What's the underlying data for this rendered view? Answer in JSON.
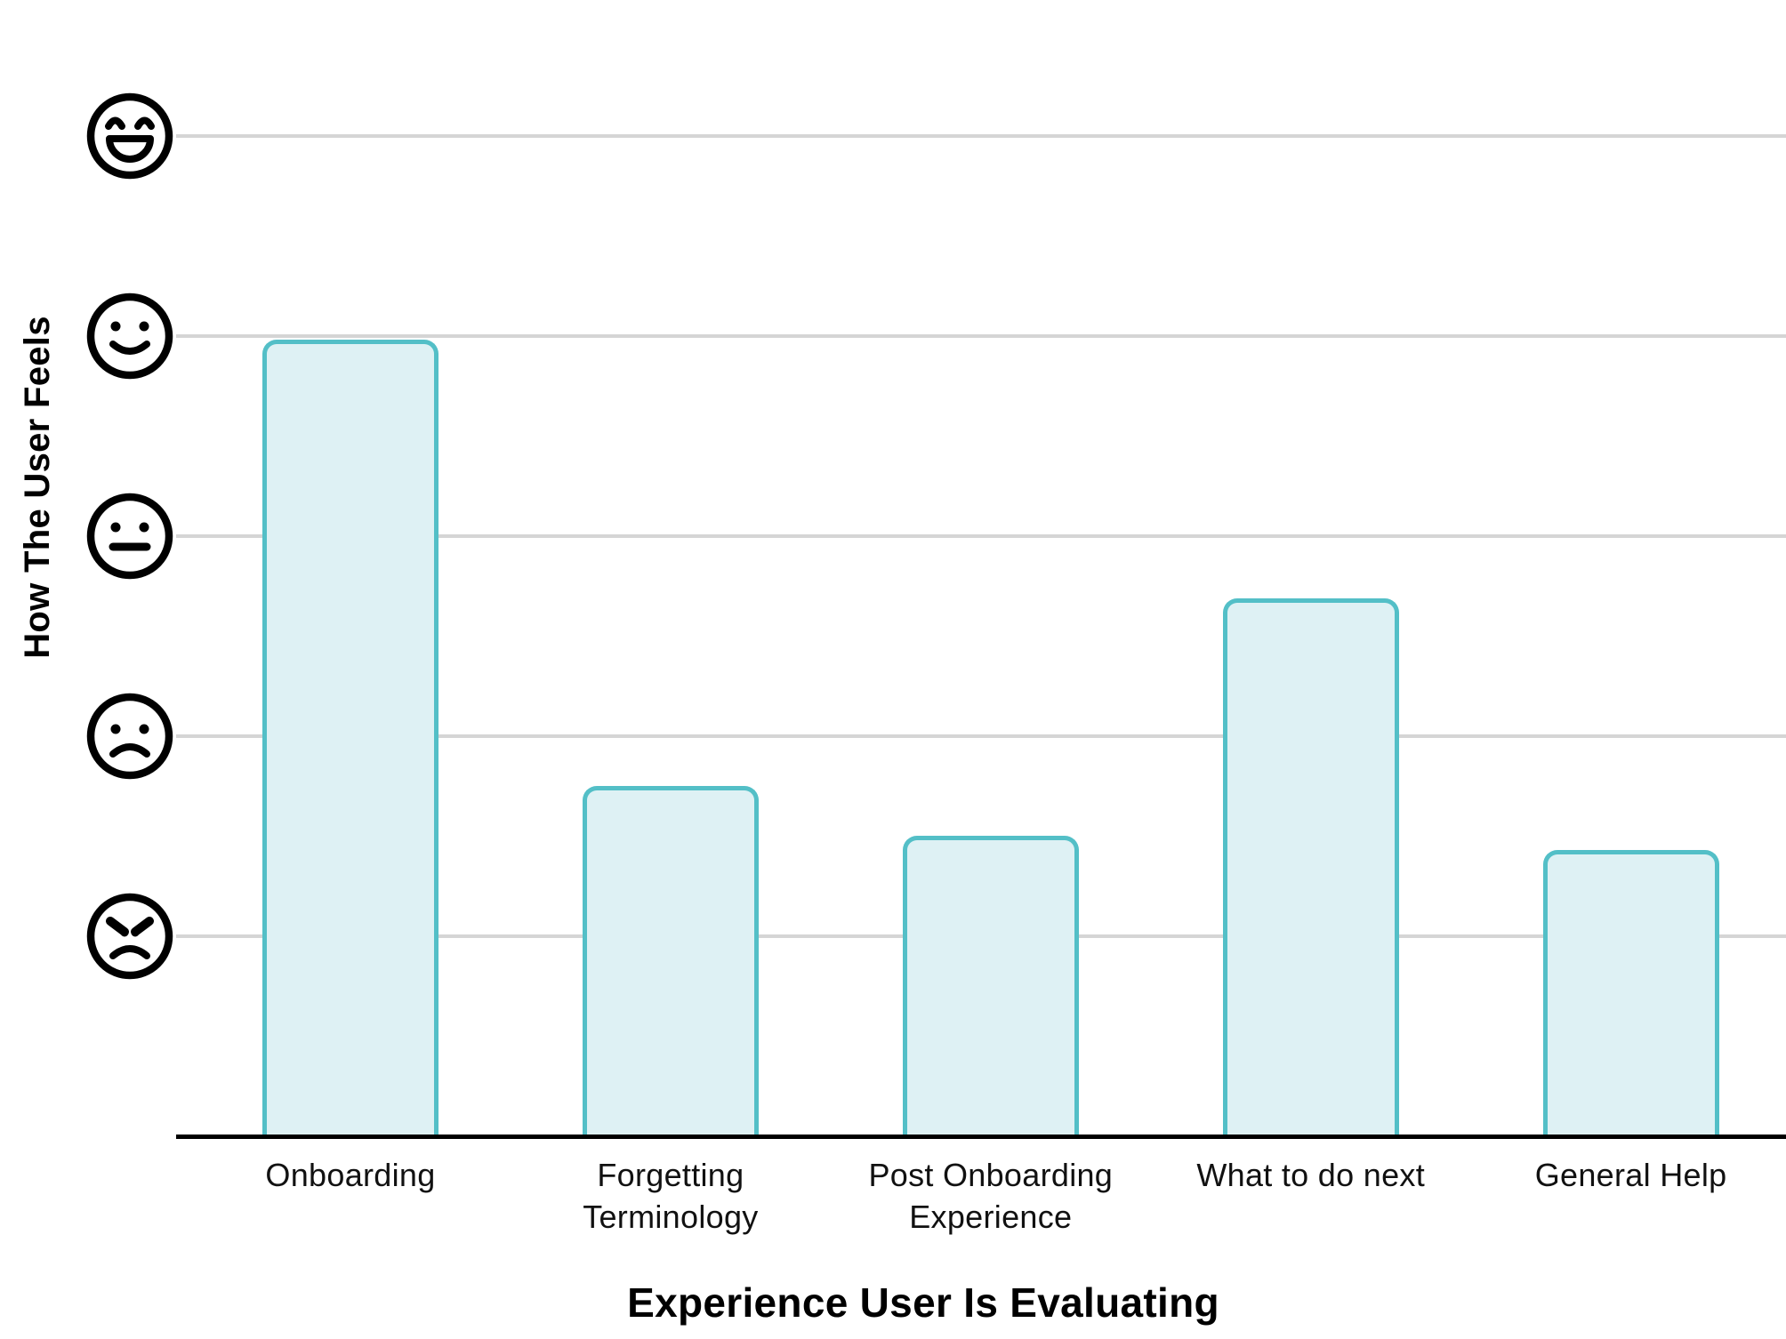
{
  "chart_data": {
    "type": "bar",
    "categories": [
      "Onboarding",
      "Forgetting\nTerminology",
      "Post Onboarding\nExperience",
      "What to do next",
      "General Help"
    ],
    "values": [
      3.98,
      1.75,
      1.5,
      2.69,
      1.43
    ],
    "xlabel": "Experience User Is Evaluating",
    "ylabel": "How The User Feels",
    "ylim": [
      0,
      5.7
    ],
    "yticks": [
      {
        "value": 5,
        "icon": "laughing-face"
      },
      {
        "value": 4,
        "icon": "smiling-face"
      },
      {
        "value": 3,
        "icon": "neutral-face"
      },
      {
        "value": 2,
        "icon": "frowning-face"
      },
      {
        "value": 1,
        "icon": "angry-face"
      }
    ],
    "grid": "horizontal",
    "legend": "none",
    "colors": {
      "bar_fill": "#def1f4",
      "bar_border": "#53bfc7",
      "gridline": "#d5d5d5",
      "axis": "#000000",
      "text": "#111111"
    }
  }
}
